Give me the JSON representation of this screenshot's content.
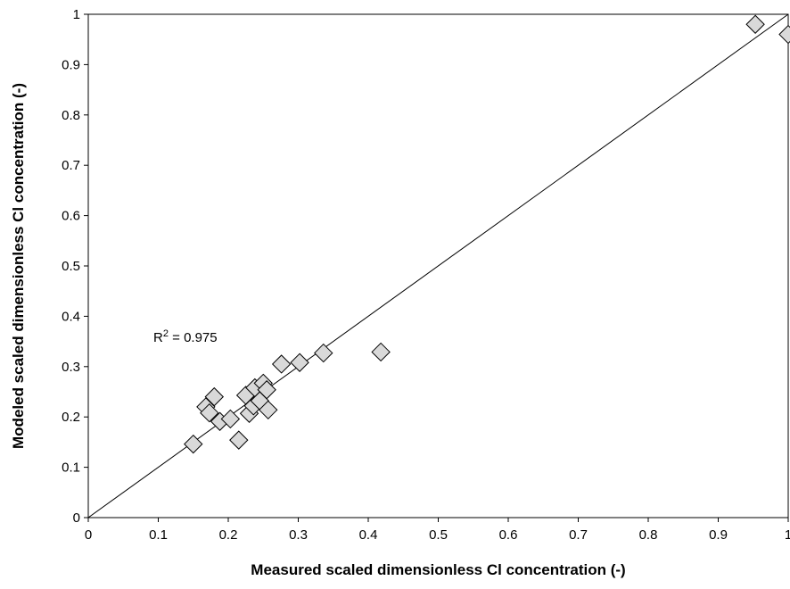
{
  "chart_data": {
    "type": "scatter",
    "xlabel": "Measured scaled dimensionless Cl concentration (-)",
    "ylabel": "Modeled scaled dimensionless Cl concentration (-)",
    "xlim": [
      0,
      1
    ],
    "ylim": [
      0,
      1
    ],
    "x_ticks": [
      "0",
      "0.1",
      "0.2",
      "0.3",
      "0.4",
      "0.5",
      "0.6",
      "0.7",
      "0.8",
      "0.9",
      "1"
    ],
    "y_ticks": [
      "0",
      "0.1",
      "0.2",
      "0.3",
      "0.4",
      "0.5",
      "0.6",
      "0.7",
      "0.8",
      "0.9",
      "1"
    ],
    "grid": false,
    "marker": "diamond",
    "marker_color": "#d9d9d9",
    "marker_edge_color": "#000000",
    "reference_line": {
      "type": "1:1",
      "from": [
        0,
        0
      ],
      "to": [
        1,
        1
      ]
    },
    "annotation": {
      "prefix": "R",
      "superscript": "2",
      "text": " = 0.975"
    },
    "points": [
      {
        "x": 0.15,
        "y": 0.146
      },
      {
        "x": 0.168,
        "y": 0.22
      },
      {
        "x": 0.173,
        "y": 0.208
      },
      {
        "x": 0.18,
        "y": 0.24
      },
      {
        "x": 0.188,
        "y": 0.191
      },
      {
        "x": 0.203,
        "y": 0.196
      },
      {
        "x": 0.215,
        "y": 0.154
      },
      {
        "x": 0.225,
        "y": 0.243
      },
      {
        "x": 0.23,
        "y": 0.207
      },
      {
        "x": 0.236,
        "y": 0.222
      },
      {
        "x": 0.238,
        "y": 0.258
      },
      {
        "x": 0.245,
        "y": 0.232
      },
      {
        "x": 0.25,
        "y": 0.267
      },
      {
        "x": 0.255,
        "y": 0.254
      },
      {
        "x": 0.257,
        "y": 0.214
      },
      {
        "x": 0.276,
        "y": 0.305
      },
      {
        "x": 0.302,
        "y": 0.308
      },
      {
        "x": 0.336,
        "y": 0.327
      },
      {
        "x": 0.418,
        "y": 0.329
      },
      {
        "x": 0.953,
        "y": 0.98
      },
      {
        "x": 1.0,
        "y": 0.96
      }
    ]
  }
}
